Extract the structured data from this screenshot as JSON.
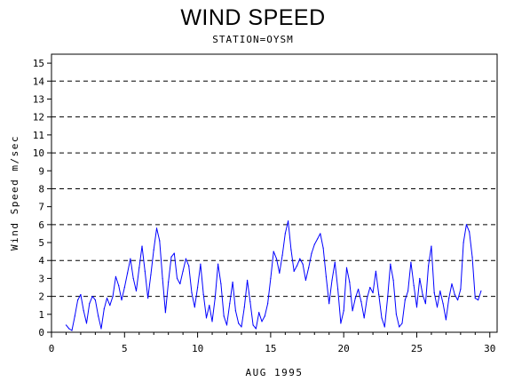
{
  "chart_data": {
    "type": "line",
    "title": "WIND SPEED",
    "subtitle": "STATION=OYSM",
    "xlabel": "AUG 1995",
    "ylabel": "Wind Speed m/sec",
    "xlim": [
      0,
      30.5
    ],
    "ylim": [
      0,
      15.5
    ],
    "xticks": [
      0,
      5,
      10,
      15,
      20,
      25,
      30
    ],
    "yticks": [
      0,
      1,
      2,
      3,
      4,
      5,
      6,
      7,
      8,
      9,
      10,
      11,
      12,
      13,
      14,
      15
    ],
    "reference_lines_y": [
      2,
      4,
      6,
      8,
      10,
      12,
      14
    ],
    "grid_style": "dashed horizontal reference lines",
    "line_color": "#0000ff",
    "series": [
      {
        "x": [
          1.0,
          1.2,
          1.4,
          1.6,
          1.8,
          2.0,
          2.2,
          2.4,
          2.6,
          2.8,
          3.0,
          3.2,
          3.4,
          3.6,
          3.8,
          4.0,
          4.2,
          4.4,
          4.6,
          4.8,
          5.0,
          5.2,
          5.4,
          5.6,
          5.8,
          6.0,
          6.2,
          6.4,
          6.6,
          6.8,
          7.0,
          7.2,
          7.4,
          7.6,
          7.8,
          8.0,
          8.2,
          8.4,
          8.6,
          8.8,
          9.0,
          9.2,
          9.4,
          9.6,
          9.8,
          10.0,
          10.2,
          10.4,
          10.6,
          10.8,
          11.0,
          11.2,
          11.4,
          11.6,
          11.8,
          12.0,
          12.2,
          12.4,
          12.6,
          12.8,
          13.0,
          13.2,
          13.4,
          13.6,
          13.8,
          14.0,
          14.2,
          14.4,
          14.6,
          14.8,
          15.0,
          15.2,
          15.4,
          15.6,
          15.8,
          16.0,
          16.2,
          16.4,
          16.6,
          16.8,
          17.0,
          17.2,
          17.4,
          17.6,
          17.8,
          18.0,
          18.2,
          18.4,
          18.6,
          18.8,
          19.0,
          19.2,
          19.4,
          19.6,
          19.8,
          20.0,
          20.2,
          20.4,
          20.6,
          20.8,
          21.0,
          21.2,
          21.4,
          21.6,
          21.8,
          22.0,
          22.2,
          22.4,
          22.6,
          22.8,
          23.0,
          23.2,
          23.4,
          23.6,
          23.8,
          24.0,
          24.2,
          24.4,
          24.6,
          24.8,
          25.0,
          25.2,
          25.4,
          25.6,
          25.8,
          26.0,
          26.2,
          26.4,
          26.6,
          26.8,
          27.0,
          27.2,
          27.4,
          27.6,
          27.8,
          28.0,
          28.2,
          28.4,
          28.6,
          28.8,
          29.0,
          29.2,
          29.4
        ],
        "y": [
          0.4,
          0.2,
          0.1,
          0.9,
          1.8,
          2.1,
          1.2,
          0.5,
          1.6,
          2.0,
          1.8,
          0.9,
          0.2,
          1.3,
          1.9,
          1.5,
          2.0,
          3.1,
          2.6,
          1.8,
          2.5,
          3.3,
          4.1,
          3.0,
          2.3,
          3.6,
          4.8,
          3.4,
          1.9,
          3.2,
          4.6,
          5.8,
          5.1,
          3.0,
          1.1,
          2.8,
          4.2,
          4.4,
          3.0,
          2.7,
          3.4,
          4.1,
          3.7,
          2.2,
          1.4,
          2.5,
          3.8,
          2.1,
          0.8,
          1.5,
          0.6,
          1.9,
          3.8,
          2.7,
          0.9,
          0.4,
          1.6,
          2.8,
          1.2,
          0.5,
          0.3,
          1.4,
          2.9,
          1.7,
          0.4,
          0.2,
          1.1,
          0.6,
          0.9,
          1.6,
          3.0,
          4.5,
          4.1,
          3.3,
          4.3,
          5.5,
          6.2,
          4.6,
          3.4,
          3.7,
          4.1,
          3.8,
          2.9,
          3.6,
          4.4,
          4.9,
          5.2,
          5.5,
          4.7,
          3.1,
          1.6,
          2.9,
          3.9,
          2.4,
          0.5,
          1.2,
          3.6,
          2.8,
          1.2,
          1.9,
          2.4,
          1.7,
          0.8,
          1.9,
          2.5,
          2.2,
          3.4,
          2.1,
          0.8,
          0.3,
          1.9,
          3.8,
          2.9,
          1.0,
          0.3,
          0.5,
          1.8,
          2.3,
          3.9,
          2.6,
          1.4,
          3.0,
          2.1,
          1.6,
          3.7,
          4.8,
          2.2,
          1.4,
          2.3,
          1.6,
          0.7,
          1.9,
          2.7,
          2.1,
          1.8,
          2.4,
          5.0,
          6.0,
          5.6,
          4.2,
          1.9,
          1.8,
          2.3
        ]
      }
    ]
  }
}
